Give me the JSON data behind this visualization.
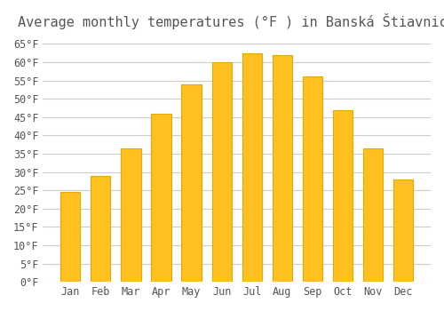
{
  "title": "Average monthly temperatures (°F ) in Banská Štiavnica",
  "months": [
    "Jan",
    "Feb",
    "Mar",
    "Apr",
    "May",
    "Jun",
    "Jul",
    "Aug",
    "Sep",
    "Oct",
    "Nov",
    "Dec"
  ],
  "values": [
    24.5,
    29.0,
    36.5,
    46.0,
    54.0,
    60.0,
    62.5,
    62.0,
    56.0,
    47.0,
    36.5,
    28.0
  ],
  "bar_color": "#FFC020",
  "bar_edge_color": "#E8A800",
  "background_color": "#FFFFFF",
  "grid_color": "#CCCCCC",
  "text_color": "#555555",
  "ylim": [
    0,
    67
  ],
  "ytick_step": 5,
  "title_fontsize": 11,
  "tick_fontsize": 8.5,
  "font_family": "monospace"
}
